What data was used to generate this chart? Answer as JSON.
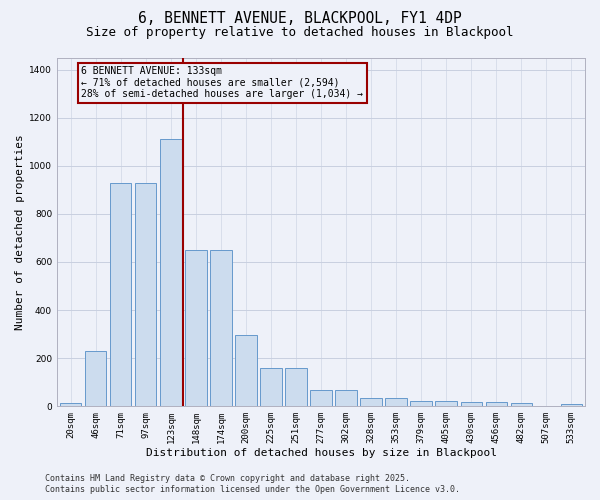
{
  "title": "6, BENNETT AVENUE, BLACKPOOL, FY1 4DP",
  "subtitle": "Size of property relative to detached houses in Blackpool",
  "xlabel": "Distribution of detached houses by size in Blackpool",
  "ylabel": "Number of detached properties",
  "categories": [
    "20sqm",
    "46sqm",
    "71sqm",
    "97sqm",
    "123sqm",
    "148sqm",
    "174sqm",
    "200sqm",
    "225sqm",
    "251sqm",
    "277sqm",
    "302sqm",
    "328sqm",
    "353sqm",
    "379sqm",
    "405sqm",
    "430sqm",
    "456sqm",
    "482sqm",
    "507sqm",
    "533sqm"
  ],
  "values": [
    15,
    230,
    930,
    930,
    1110,
    650,
    650,
    295,
    160,
    160,
    68,
    68,
    35,
    35,
    22,
    22,
    18,
    18,
    12,
    0,
    8
  ],
  "bar_color": "#ccdcee",
  "bar_edge_color": "#6699cc",
  "grid_color": "#c8cfe0",
  "bg_color": "#eef1f9",
  "vline_color": "#990000",
  "vline_x": 4.5,
  "annotation_text": "6 BENNETT AVENUE: 133sqm\n← 71% of detached houses are smaller (2,594)\n28% of semi-detached houses are larger (1,034) →",
  "footer": "Contains HM Land Registry data © Crown copyright and database right 2025.\nContains public sector information licensed under the Open Government Licence v3.0.",
  "ylim_max": 1450,
  "title_fontsize": 10.5,
  "subtitle_fontsize": 9,
  "label_fontsize": 8,
  "tick_fontsize": 6.5,
  "footer_fontsize": 6,
  "ann_fontsize": 7
}
